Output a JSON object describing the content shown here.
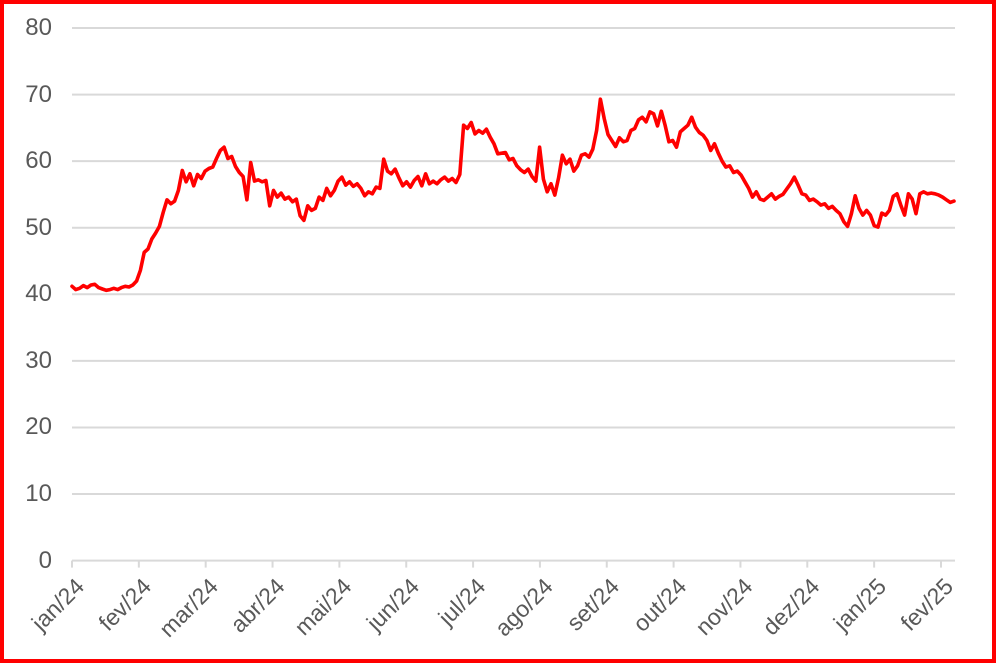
{
  "chart_data": {
    "type": "line",
    "title": "",
    "x_tick_labels": [
      "jan/24",
      "fev/24",
      "mar/24",
      "abr/24",
      "mai/24",
      "jun/24",
      "jul/24",
      "ago/24",
      "set/24",
      "out/24",
      "nov/24",
      "dez/24",
      "jan/25",
      "fev/25"
    ],
    "y_tick_labels": [
      "0",
      "10",
      "20",
      "30",
      "40",
      "50",
      "60",
      "70",
      "80"
    ],
    "y_tick_values": [
      0,
      10,
      20,
      30,
      40,
      50,
      60,
      70,
      80
    ],
    "ylim": [
      0,
      80
    ],
    "grid": true,
    "legend_position": "none",
    "series": [
      {
        "color": "#FF0000",
        "values": [
          41.2,
          40.7,
          40.9,
          41.3,
          41.0,
          41.4,
          41.5,
          41.0,
          40.8,
          40.6,
          40.7,
          40.9,
          40.7,
          41.0,
          41.2,
          41.1,
          41.4,
          42.0,
          43.6,
          46.3,
          46.8,
          48.3,
          49.2,
          50.2,
          52.3,
          54.2,
          53.6,
          54.0,
          55.6,
          58.6,
          56.9,
          58.1,
          56.3,
          58.0,
          57.4,
          58.5,
          58.9,
          59.1,
          60.4,
          61.6,
          62.1,
          60.4,
          60.7,
          59.2,
          58.3,
          57.7,
          54.2,
          59.8,
          57.0,
          57.2,
          56.9,
          57.1,
          53.3,
          55.6,
          54.6,
          55.2,
          54.3,
          54.6,
          53.9,
          54.3,
          51.8,
          51.1,
          53.3,
          52.6,
          52.9,
          54.6,
          54.1,
          55.9,
          54.8,
          55.6,
          57.0,
          57.6,
          56.4,
          56.9,
          56.2,
          56.6,
          55.9,
          54.8,
          55.4,
          55.1,
          56.1,
          55.9,
          60.3,
          58.5,
          58.1,
          58.8,
          57.5,
          56.3,
          56.9,
          56.1,
          57.1,
          57.7,
          56.3,
          58.1,
          56.6,
          57.0,
          56.6,
          57.2,
          57.6,
          57.0,
          57.4,
          56.8,
          58.0,
          65.4,
          64.9,
          65.8,
          64.1,
          64.6,
          64.2,
          64.8,
          63.6,
          62.6,
          61.1,
          61.2,
          61.3,
          60.2,
          60.4,
          59.3,
          58.7,
          58.3,
          58.8,
          57.7,
          57.0,
          62.1,
          57.3,
          55.4,
          56.6,
          54.9,
          57.5,
          60.9,
          59.6,
          60.3,
          58.5,
          59.3,
          60.9,
          61.1,
          60.6,
          61.8,
          64.6,
          69.3,
          66.4,
          64.0,
          63.1,
          62.2,
          63.5,
          62.9,
          63.1,
          64.6,
          64.9,
          66.2,
          66.6,
          65.9,
          67.4,
          67.1,
          65.3,
          67.5,
          65.4,
          62.9,
          63.1,
          62.1,
          64.4,
          64.9,
          65.4,
          66.6,
          65.1,
          64.3,
          63.9,
          63.1,
          61.6,
          62.6,
          61.2,
          60.0,
          59.1,
          59.3,
          58.3,
          58.5,
          57.9,
          56.9,
          55.9,
          54.6,
          55.4,
          54.3,
          54.1,
          54.6,
          55.1,
          54.3,
          54.7,
          55.0,
          55.8,
          56.6,
          57.6,
          56.4,
          55.1,
          54.9,
          54.1,
          54.3,
          53.9,
          53.4,
          53.6,
          52.9,
          53.2,
          52.6,
          52.1,
          50.9,
          50.2,
          52.1,
          54.8,
          52.9,
          51.9,
          52.6,
          51.9,
          50.3,
          50.1,
          52.2,
          51.9,
          52.6,
          54.7,
          55.1,
          53.4,
          51.9,
          55.1,
          54.3,
          52.1,
          55.1,
          55.4,
          55.1,
          55.2,
          55.1,
          54.9,
          54.6,
          54.2,
          53.8,
          54.0
        ]
      }
    ]
  },
  "style": {
    "frame_border_color": "#FF0000",
    "line_color": "#FF0000",
    "gridline_color": "#D9D9D9",
    "axis_label_color": "#595959",
    "background_color": "#FFFFFF"
  }
}
